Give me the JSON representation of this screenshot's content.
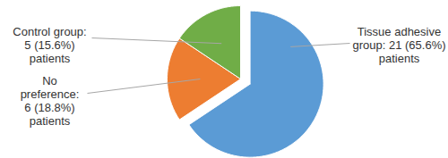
{
  "chart_data": {
    "type": "pie",
    "categories": [
      "Tissue adhesive group:",
      "No preference:",
      "Control group:"
    ],
    "values": [
      21,
      6,
      5
    ],
    "value_labels": [
      "21 (65.6%) patients",
      "6 (18.8%) patients",
      "5 (15.6%) patients"
    ],
    "colors": [
      "#5b9bd5",
      "#ed7d31",
      "#70ad47"
    ],
    "data_labels": true
  }
}
